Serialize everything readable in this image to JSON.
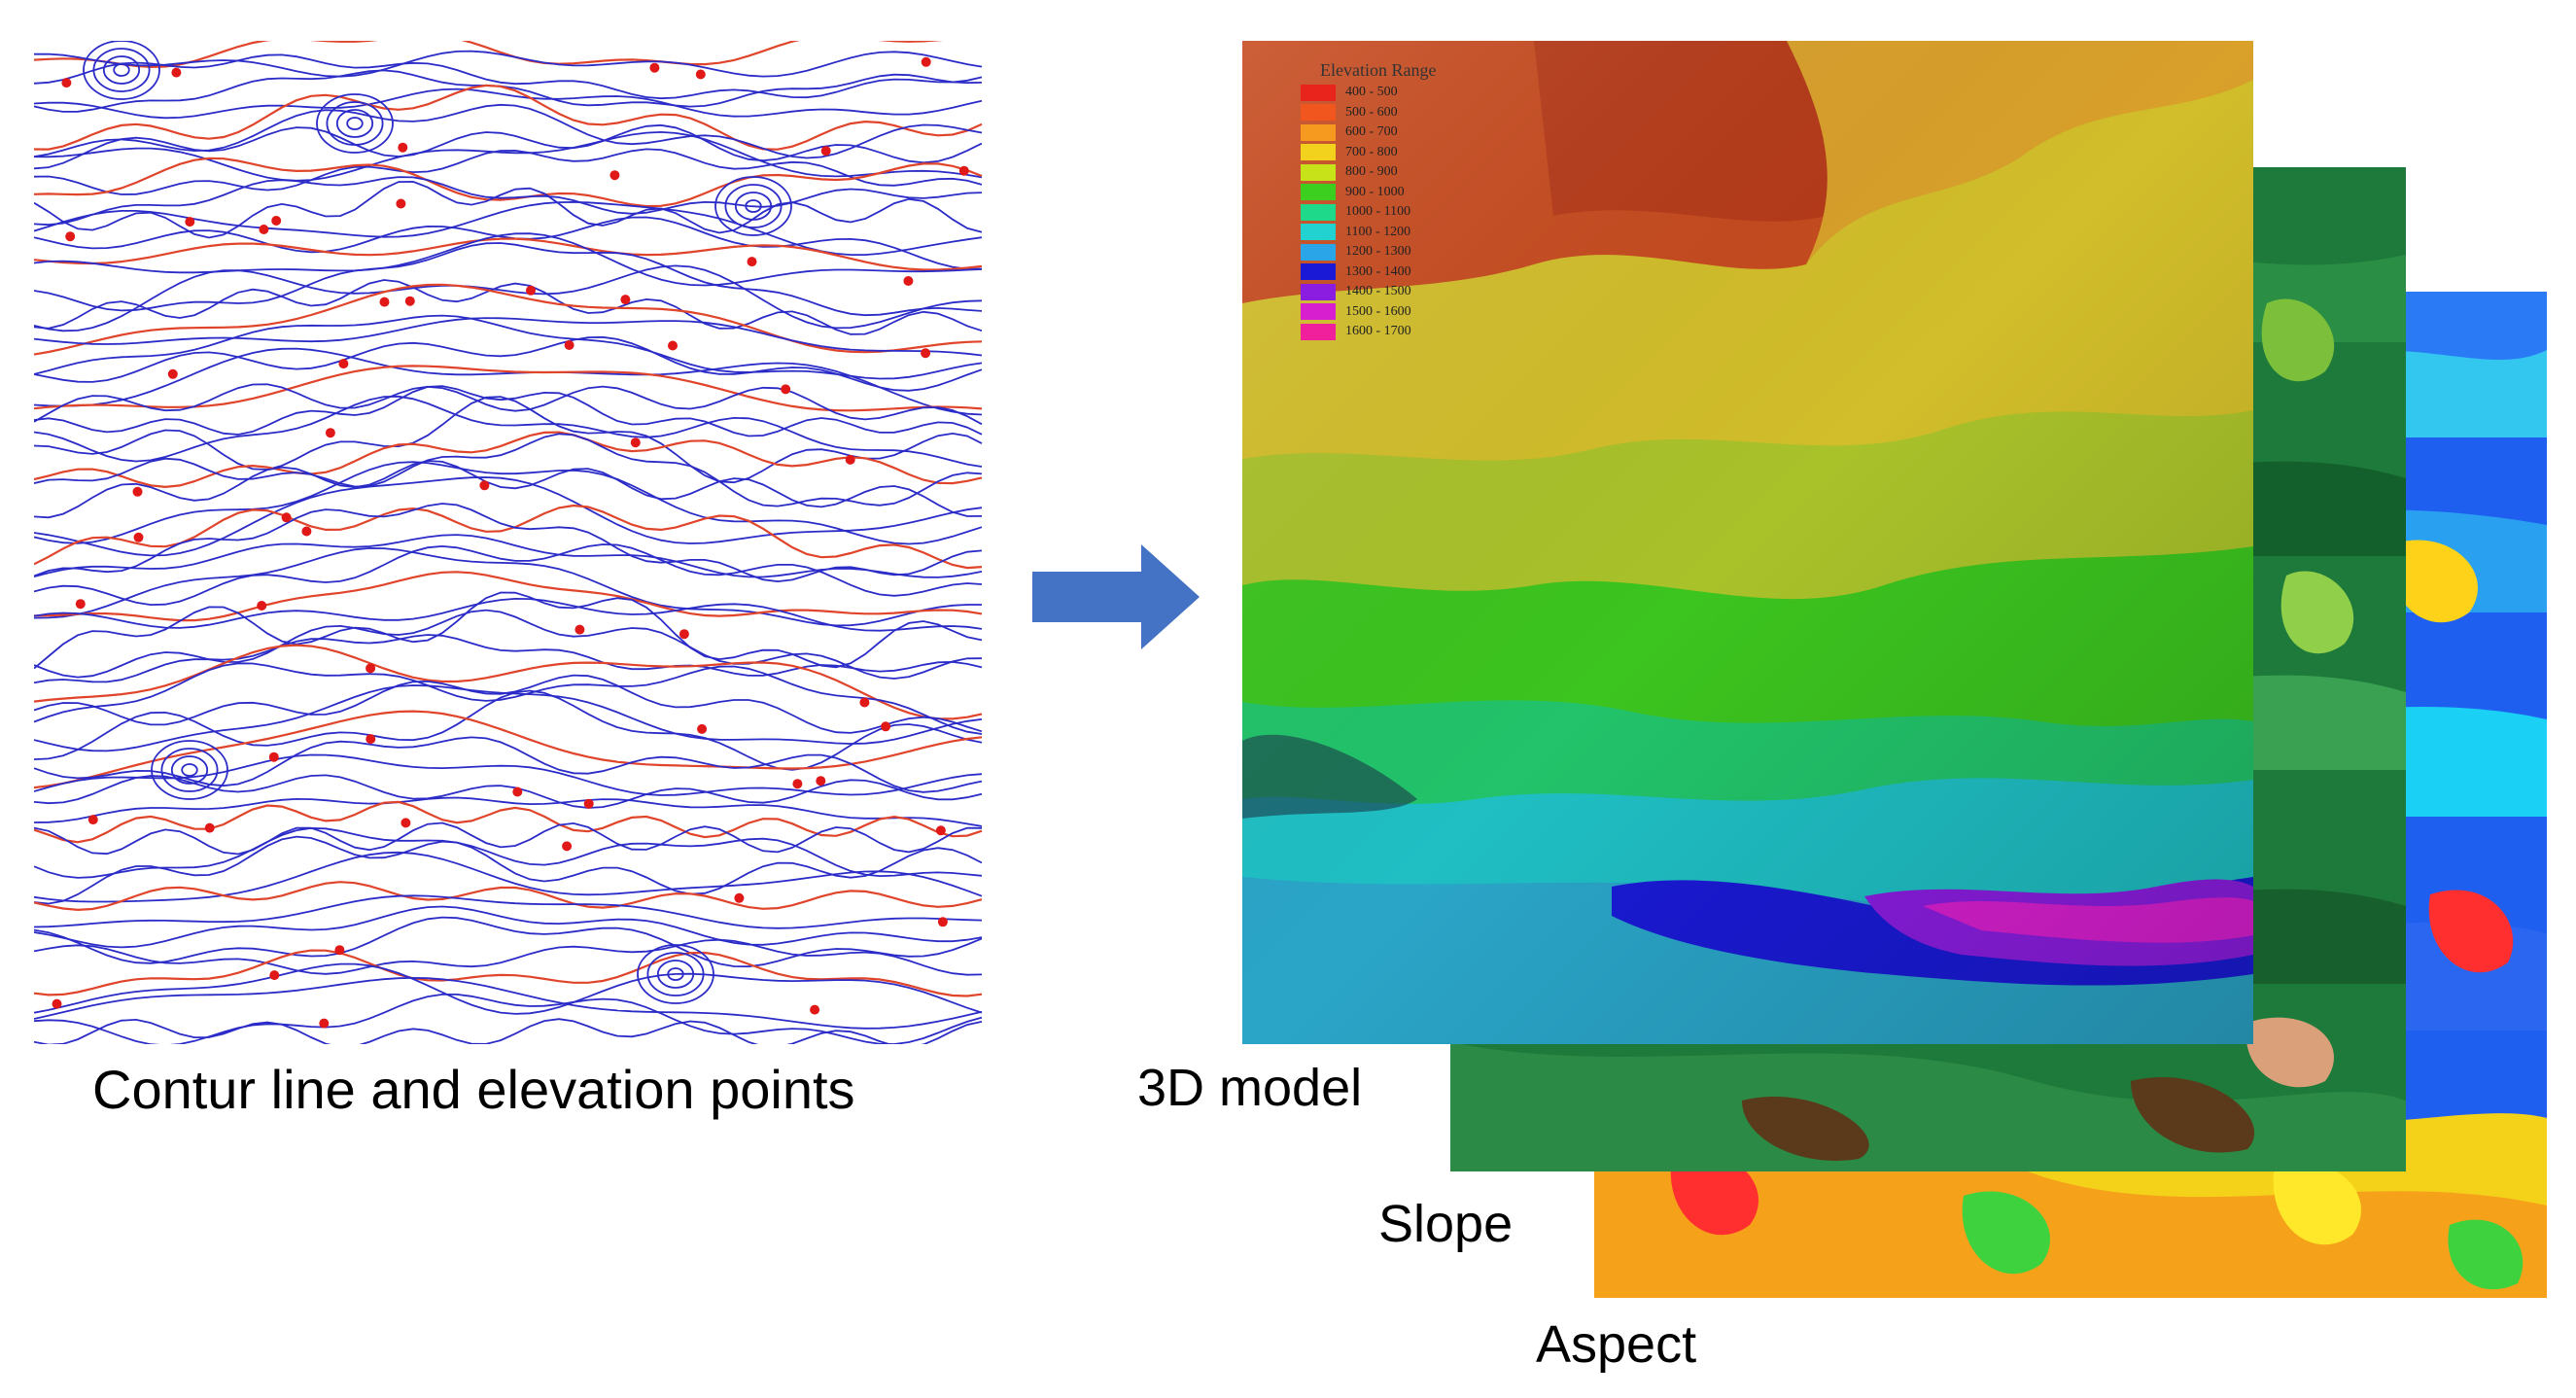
{
  "captions": {
    "contour": "Contur line and elevation points",
    "dem": "3D model",
    "slope": "Slope",
    "aspect": "Aspect"
  },
  "legend": {
    "title": "Elevation Range",
    "items": [
      {
        "label": "400 - 500",
        "color": "#e8241c"
      },
      {
        "label": "500 - 600",
        "color": "#f0561e"
      },
      {
        "label": "600 - 700",
        "color": "#f59a1f"
      },
      {
        "label": "700 - 800",
        "color": "#f2d21d"
      },
      {
        "label": "800 - 900",
        "color": "#c8e21a"
      },
      {
        "label": "900 - 1000",
        "color": "#3ccf1f"
      },
      {
        "label": "1000 - 1100",
        "color": "#1fd98a"
      },
      {
        "label": "1100 - 1200",
        "color": "#22d2d0"
      },
      {
        "label": "1200 - 1300",
        "color": "#2aa5e8"
      },
      {
        "label": "1300 - 1400",
        "color": "#1a1ad6"
      },
      {
        "label": "1400 - 1500",
        "color": "#8a1de0"
      },
      {
        "label": "1500 - 1600",
        "color": "#d81fd0"
      },
      {
        "label": "1600 - 1700",
        "color": "#f01f9c"
      }
    ]
  },
  "colors": {
    "contour_line": "#2b2bc8",
    "index_contour": "#e0442a",
    "elevation_point": "#e01818",
    "arrow": "#4472c4"
  }
}
